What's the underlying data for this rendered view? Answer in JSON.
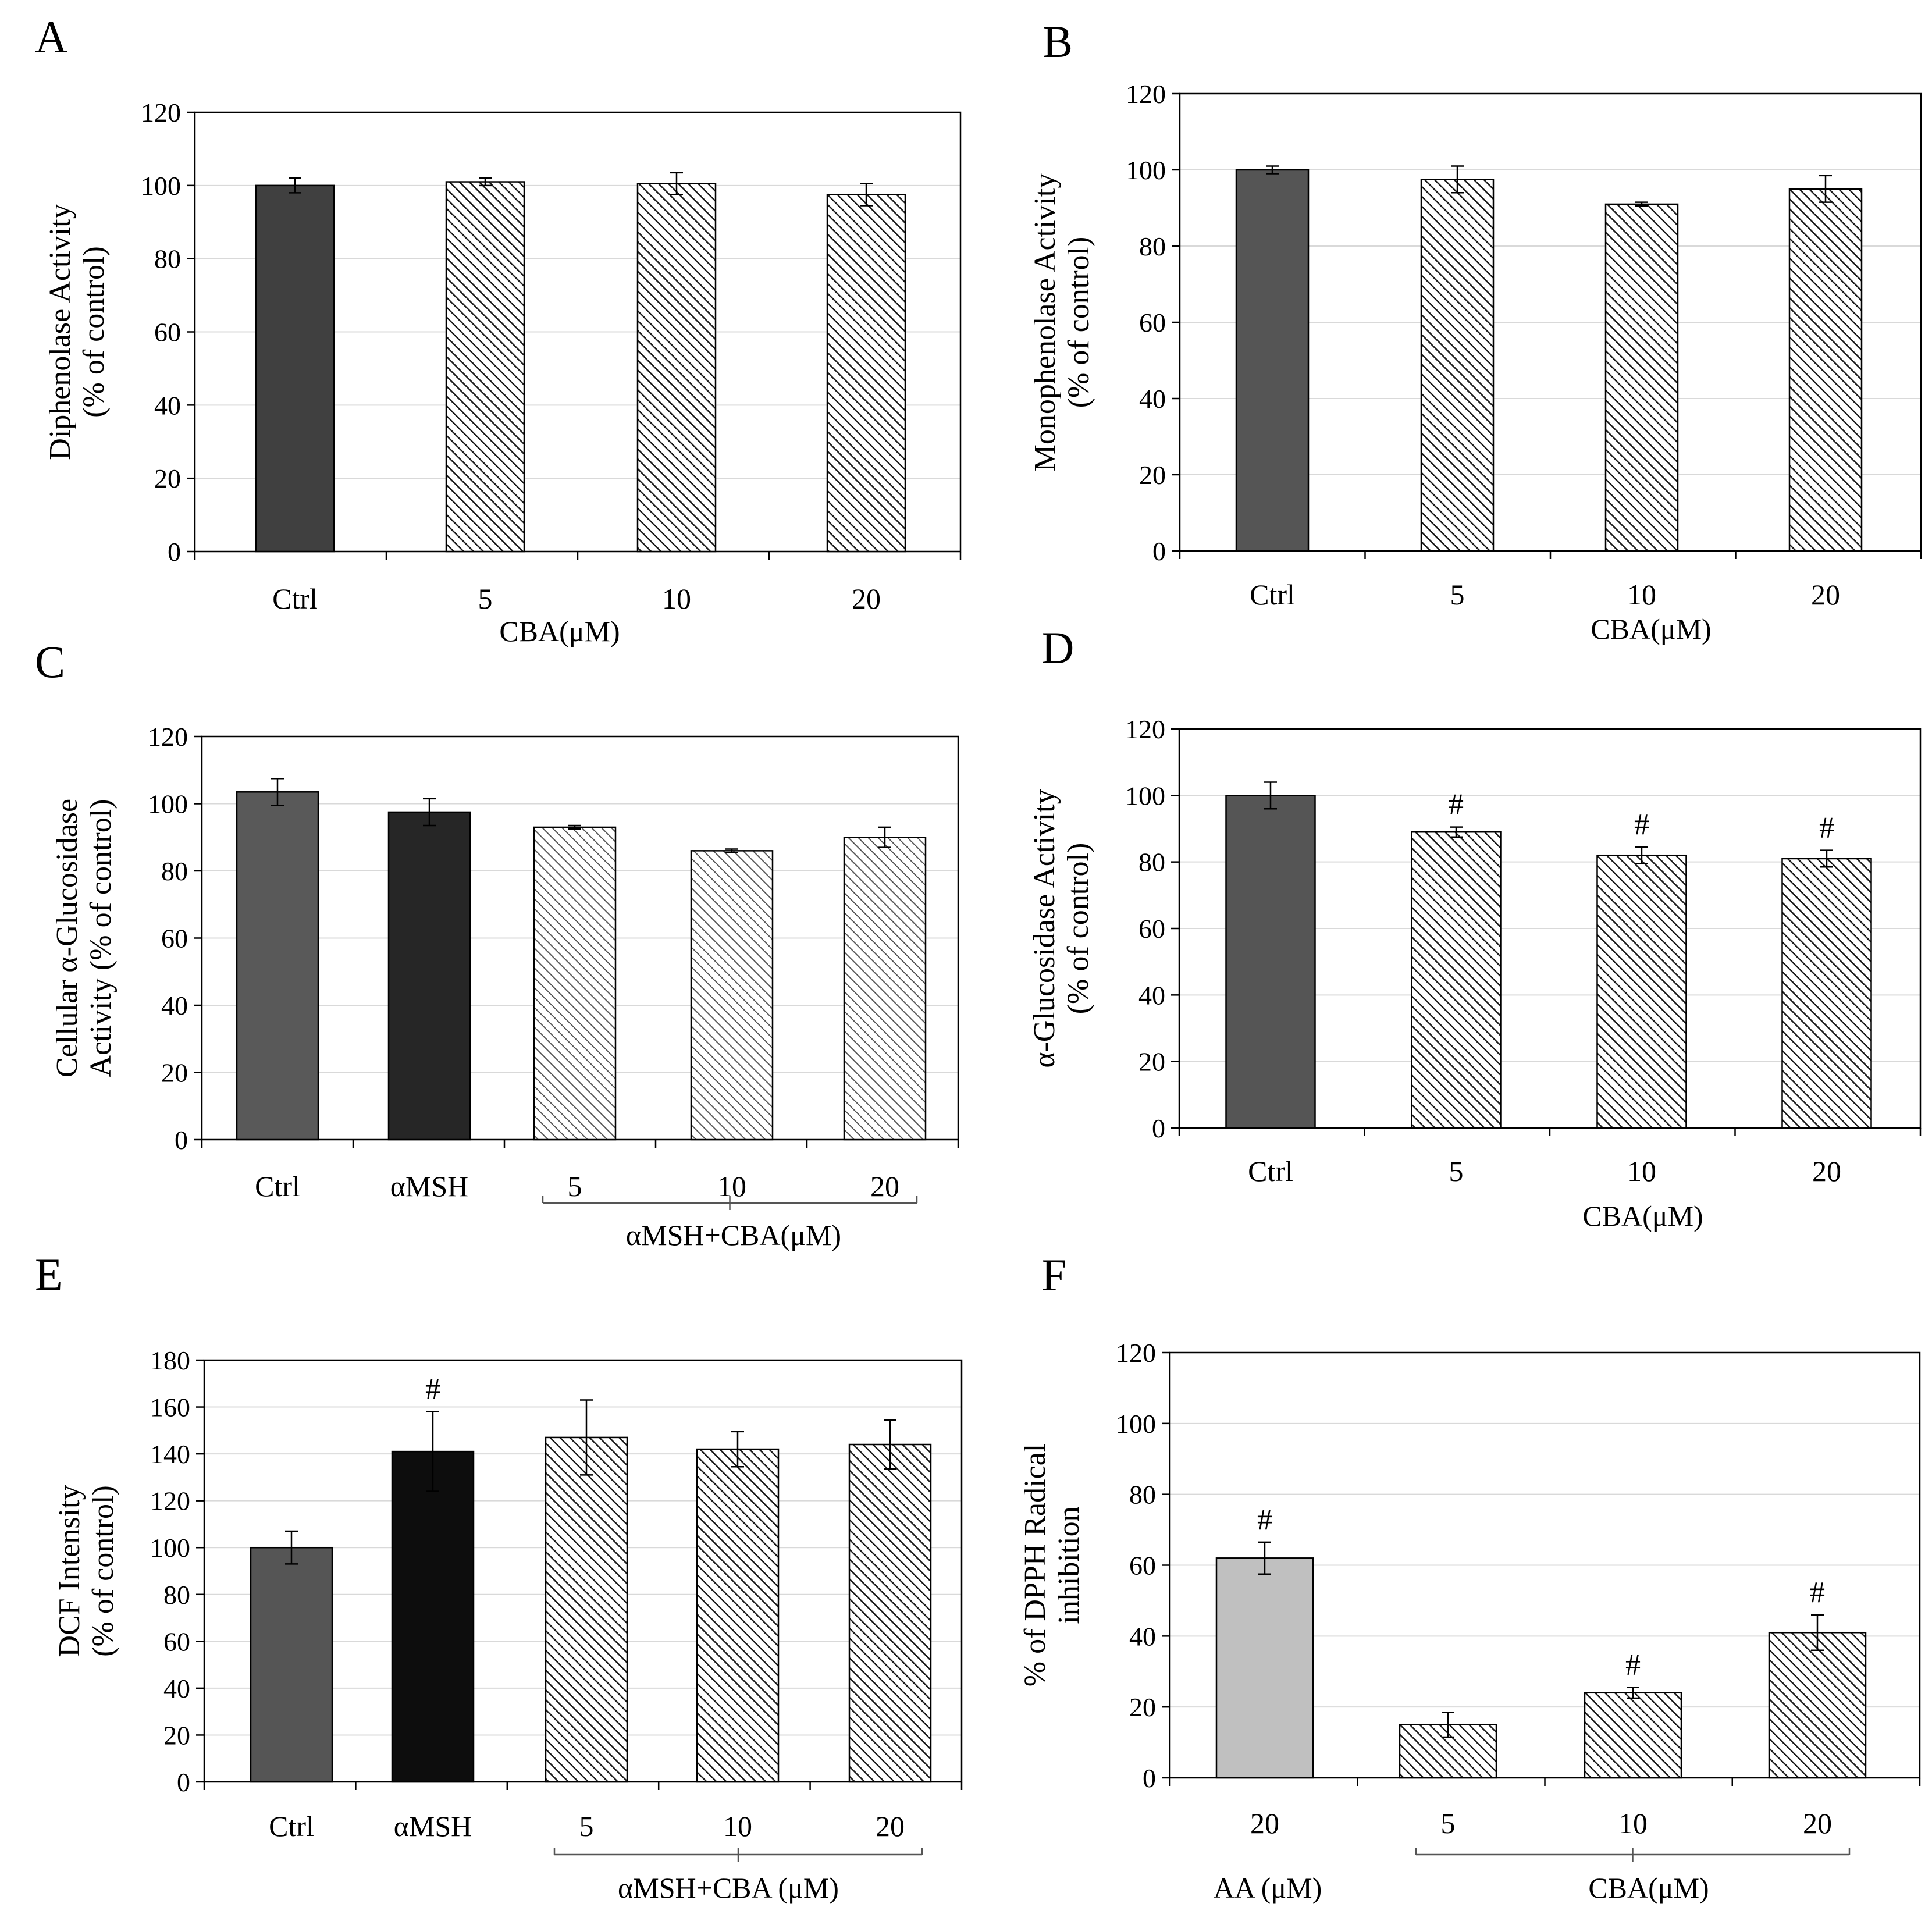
{
  "chart_data": [
    {
      "id": "A",
      "panel_label": "A",
      "type": "bar",
      "categories": [
        "Ctrl",
        "5",
        "10",
        "20"
      ],
      "values": [
        100,
        101,
        100.5,
        97.5
      ],
      "errors": [
        2,
        1,
        3,
        3
      ],
      "fills": [
        "solid:#404040",
        "hatch",
        "hatch",
        "hatch"
      ],
      "significance": [
        "",
        "",
        "",
        ""
      ],
      "ylabel": [
        "Diphenolase Activity",
        "(% of control)"
      ],
      "xlabel": "CBA(μM)",
      "ylim": [
        0,
        120
      ],
      "yticks": [
        0,
        20,
        40,
        60,
        80,
        100,
        120
      ],
      "grid": true,
      "legend": "none"
    },
    {
      "id": "B",
      "panel_label": "B",
      "type": "bar",
      "categories": [
        "Ctrl",
        "5",
        "10",
        "20"
      ],
      "values": [
        100,
        97.5,
        91,
        95
      ],
      "errors": [
        1,
        3.5,
        0.5,
        3.5
      ],
      "fills": [
        "solid:#555555",
        "hatch",
        "hatch",
        "hatch"
      ],
      "significance": [
        "",
        "",
        "",
        ""
      ],
      "ylabel": [
        "Monophenolase Activity",
        "(% of control)"
      ],
      "xlabel": "CBA(μM)",
      "ylim": [
        0,
        120
      ],
      "yticks": [
        0,
        20,
        40,
        60,
        80,
        100,
        120
      ],
      "grid": true,
      "legend": "none"
    },
    {
      "id": "C",
      "panel_label": "C",
      "type": "bar",
      "categories": [
        "Ctrl",
        "αMSH",
        "5",
        "10",
        "20"
      ],
      "values": [
        103.5,
        97.5,
        93,
        86,
        90
      ],
      "errors": [
        4,
        4,
        0.5,
        0.5,
        3
      ],
      "fills": [
        "solid:#595959",
        "solid:#262626",
        "hatch-light",
        "hatch-light",
        "hatch-light"
      ],
      "significance": [
        "",
        "",
        "",
        "",
        ""
      ],
      "ylabel": [
        "Cellular α-Glucosidase",
        "Activity (% of control)"
      ],
      "xlabel": "αMSH+CBA(μM)",
      "ylim": [
        0,
        120
      ],
      "yticks": [
        0,
        20,
        40,
        60,
        80,
        100,
        120
      ],
      "grid": true,
      "legend": "none"
    },
    {
      "id": "D",
      "panel_label": "D",
      "type": "bar",
      "categories": [
        "Ctrl",
        "5",
        "10",
        "20"
      ],
      "values": [
        100,
        89,
        82,
        81
      ],
      "errors": [
        4,
        1.5,
        2.5,
        2.5
      ],
      "fills": [
        "solid:#555555",
        "hatch",
        "hatch",
        "hatch"
      ],
      "significance": [
        "",
        "#",
        "#",
        "#"
      ],
      "ylabel": [
        "α-Glucosidase Activity",
        "(% of control)"
      ],
      "xlabel": "CBA(μM)",
      "ylim": [
        0,
        120
      ],
      "yticks": [
        0,
        20,
        40,
        60,
        80,
        100,
        120
      ],
      "grid": true,
      "legend": "none"
    },
    {
      "id": "E",
      "panel_label": "E",
      "type": "bar",
      "categories": [
        "Ctrl",
        "αMSH",
        "5",
        "10",
        "20"
      ],
      "values": [
        100,
        141,
        147,
        142,
        144
      ],
      "errors": [
        7,
        17,
        16,
        7.5,
        10.5
      ],
      "fills": [
        "solid:#555555",
        "solid:#0d0d0d",
        "hatch",
        "hatch",
        "hatch"
      ],
      "significance": [
        "",
        "#",
        "",
        "",
        ""
      ],
      "ylabel": [
        "DCF Intensity",
        "(% of control)"
      ],
      "xlabel": "αMSH+CBA  (μM)",
      "ylim": [
        0,
        180
      ],
      "yticks": [
        0,
        20,
        40,
        60,
        80,
        100,
        120,
        140,
        160,
        180
      ],
      "grid": true,
      "legend": "none"
    },
    {
      "id": "F",
      "panel_label": "F",
      "type": "bar",
      "categories": [
        "20",
        "5",
        "10",
        "20"
      ],
      "values": [
        62,
        15,
        24,
        41
      ],
      "errors": [
        4.5,
        3.5,
        1.5,
        5
      ],
      "fills": [
        "solid:#c0c0c0",
        "hatch",
        "hatch",
        "hatch"
      ],
      "significance": [
        "#",
        "",
        "#",
        "#"
      ],
      "ylabel": [
        "% of  DPPH Radical",
        "inhibition"
      ],
      "xlabel_left": "AA  (μM)",
      "xlabel": "CBA(μM)",
      "ylim": [
        0,
        120
      ],
      "yticks": [
        0,
        20,
        40,
        60,
        80,
        100,
        120
      ],
      "grid": true,
      "legend": "none"
    }
  ]
}
